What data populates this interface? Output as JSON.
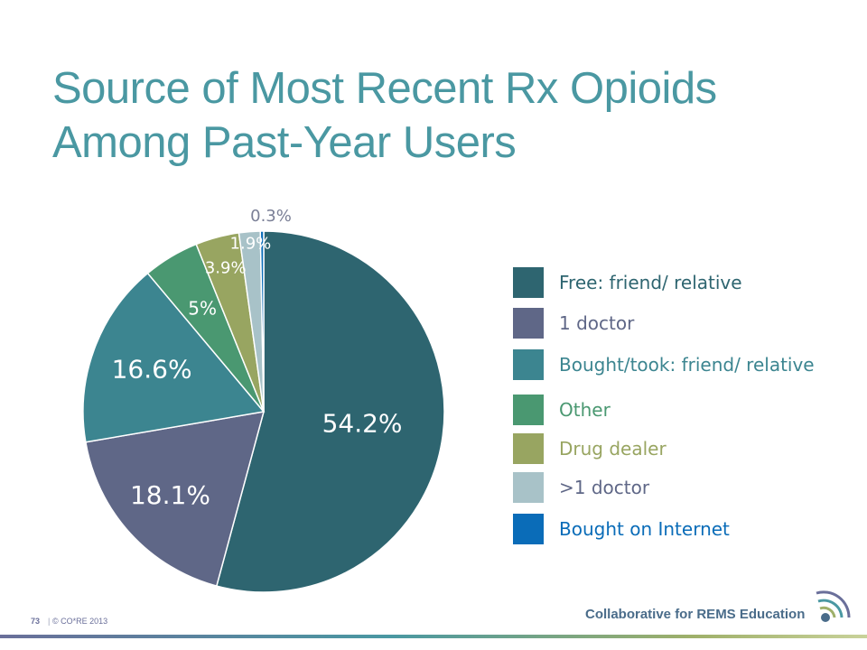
{
  "title": {
    "line1": "Source of Most Recent Rx Opioids",
    "line2": "Among Past-Year Users"
  },
  "chart_data": {
    "type": "pie",
    "title": "Source of Most Recent Rx Opioids Among Past-Year Users",
    "slices": [
      {
        "name": "Free: friend/ relative",
        "value": 54.2,
        "label": "54.2%",
        "color": "#2e6570"
      },
      {
        "name": "1 doctor",
        "value": 18.1,
        "label": "18.1%",
        "color": "#5f6787"
      },
      {
        "name": "Bought/took: friend/ relative",
        "value": 16.6,
        "label": "16.6%",
        "color": "#3c8590"
      },
      {
        "name": "Other",
        "value": 5,
        "label": "5%",
        "color": "#4a9871"
      },
      {
        "name": "Drug dealer",
        "value": 3.9,
        "label": "3.9%",
        "color": "#98a561"
      },
      {
        "name": ">1 doctor",
        "value": 1.9,
        "label": "1.9%",
        "color": "#a8c2c8"
      },
      {
        "name": "Bought on Internet",
        "value": 0.3,
        "label": "0.3%",
        "color": "#0a6cb8"
      }
    ],
    "legend_position": "right"
  },
  "legend": {
    "items": [
      {
        "label": "Free: friend/ relative",
        "swatch": "#2e6570",
        "text_color": "#2e6570"
      },
      {
        "label": "1 doctor",
        "swatch": "#5f6787",
        "text_color": "#5f6787"
      },
      {
        "label": "Bought/took: friend/ relative",
        "swatch": "#3c8590",
        "text_color": "#3c8590"
      },
      {
        "label": "Other",
        "swatch": "#4a9871",
        "text_color": "#4a9871"
      },
      {
        "label": "Drug dealer",
        "swatch": "#98a561",
        "text_color": "#98a561"
      },
      {
        "label": ">1 doctor",
        "swatch": "#a8c2c8",
        "text_color": "#5f6787"
      },
      {
        "label": "Bought on Internet",
        "swatch": "#0a6cb8",
        "text_color": "#0a6cb8"
      }
    ]
  },
  "footer": {
    "page_number": "73",
    "separator": "|",
    "copyright": "© CO*RE 2013",
    "org_name": "Collaborative for REMS Education"
  },
  "colors": {
    "title": "#4a98a2",
    "outside_label": "#7a7f96"
  }
}
